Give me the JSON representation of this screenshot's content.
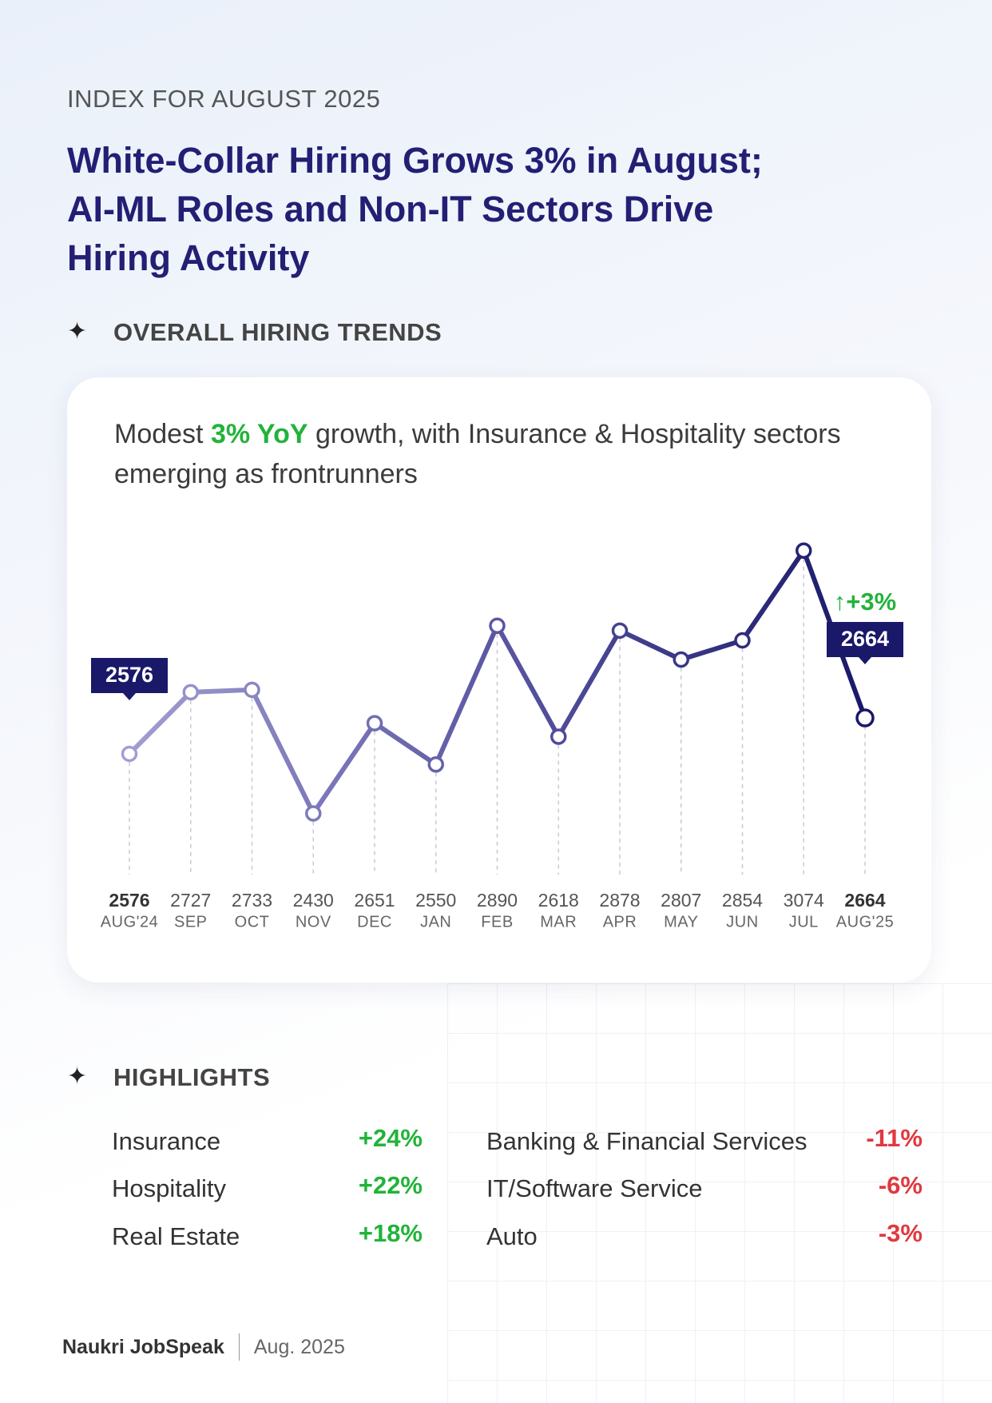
{
  "header": {
    "kicker": "INDEX FOR AUGUST 2025",
    "title_lines": [
      "White-Collar Hiring Grows 3% in August;",
      "AI-ML Roles and Non-IT Sectors Drive",
      "Hiring Activity"
    ],
    "section": "OVERALL HIRING TRENDS"
  },
  "chart_data": {
    "type": "line",
    "subtitle": {
      "before": "Modest ",
      "highlight": "3% YoY",
      "after": " growth, with Insurance & Hospitality sectors emerging as frontrunners"
    },
    "categories": [
      "AUG'24",
      "SEP",
      "OCT",
      "NOV",
      "DEC",
      "JAN",
      "FEB",
      "MAR",
      "APR",
      "MAY",
      "JUN",
      "JUL",
      "AUG'25"
    ],
    "values": [
      2576,
      2727,
      2733,
      2430,
      2651,
      2550,
      2890,
      2618,
      2878,
      2807,
      2854,
      3074,
      2664
    ],
    "color": "#1a1869",
    "ylim": [
      2280,
      3150
    ],
    "annotation": "↑+3%"
  },
  "highlights": {
    "title": "HIGHLIGHTS",
    "gainers": [
      {
        "sector": "Insurance",
        "change": "+24%"
      },
      {
        "sector": "Hospitality",
        "change": "+22%"
      },
      {
        "sector": "Real Estate",
        "change": "+18%"
      }
    ],
    "decliners": [
      {
        "sector": "Banking & Financial Services",
        "change": "-11%"
      },
      {
        "sector": "IT/Software Service",
        "change": "-6%"
      },
      {
        "sector": "Auto",
        "change": "-3%"
      }
    ]
  },
  "footer": {
    "brand": "Naukri JobSpeak",
    "date": "Aug. 2025"
  }
}
